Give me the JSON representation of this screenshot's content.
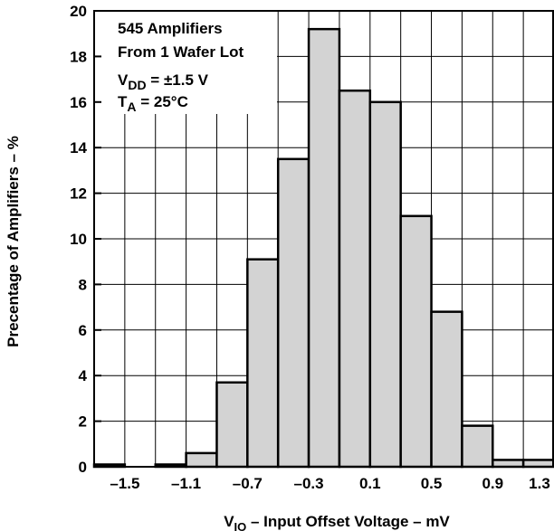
{
  "chart_data": {
    "type": "bar",
    "bins": [
      {
        "from": -1.7,
        "to": -1.5,
        "value": 0.1
      },
      {
        "from": -1.5,
        "to": -1.3,
        "value": 0
      },
      {
        "from": -1.3,
        "to": -1.1,
        "value": 0.1
      },
      {
        "from": -1.1,
        "to": -0.9,
        "value": 0.6
      },
      {
        "from": -0.9,
        "to": -0.7,
        "value": 3.7
      },
      {
        "from": -0.7,
        "to": -0.5,
        "value": 9.1
      },
      {
        "from": -0.5,
        "to": -0.3,
        "value": 13.5
      },
      {
        "from": -0.3,
        "to": -0.1,
        "value": 19.2
      },
      {
        "from": -0.1,
        "to": 0.1,
        "value": 16.5
      },
      {
        "from": 0.1,
        "to": 0.3,
        "value": 16.0
      },
      {
        "from": 0.3,
        "to": 0.5,
        "value": 11.0
      },
      {
        "from": 0.5,
        "to": 0.7,
        "value": 6.8
      },
      {
        "from": 0.7,
        "to": 0.9,
        "value": 1.8
      },
      {
        "from": 0.9,
        "to": 1.1,
        "value": 0.3
      },
      {
        "from": 1.1,
        "to": 1.3,
        "value": 0.3
      }
    ],
    "xlim": [
      -1.7,
      1.3
    ],
    "ylim": [
      0,
      20
    ],
    "x_ticks": [
      "-1.5",
      "-1.1",
      "-0.7",
      "-0.3",
      "0.1",
      "0.5",
      "0.9",
      "1.3"
    ],
    "x_tick_labels": [
      "–1.5",
      "–1.1",
      "–0.7",
      "–0.3",
      "0.1",
      "0.5",
      "0.9",
      "1.3"
    ],
    "y_ticks": [
      0,
      2,
      4,
      6,
      8,
      10,
      12,
      14,
      16,
      18,
      20
    ],
    "y_tick_labels": [
      "0",
      "2",
      "4",
      "6",
      "8",
      "10",
      "12",
      "14",
      "16",
      "18",
      "20"
    ],
    "grid": true,
    "xlabel_main": "V",
    "xlabel_sub": "IO",
    "xlabel_rest": " – Input Offset Voltage – mV",
    "ylabel": "Precentage of Amplifiers – %",
    "annotation": {
      "line1": "545 Amplifiers",
      "line2": "From 1 Wafer Lot",
      "line3_main": "V",
      "line3_sub": "DD",
      "line3_rest": " = ±1.5 V",
      "line4_main": "T",
      "line4_sub": "A",
      "line4_rest": " = 25°C"
    }
  }
}
